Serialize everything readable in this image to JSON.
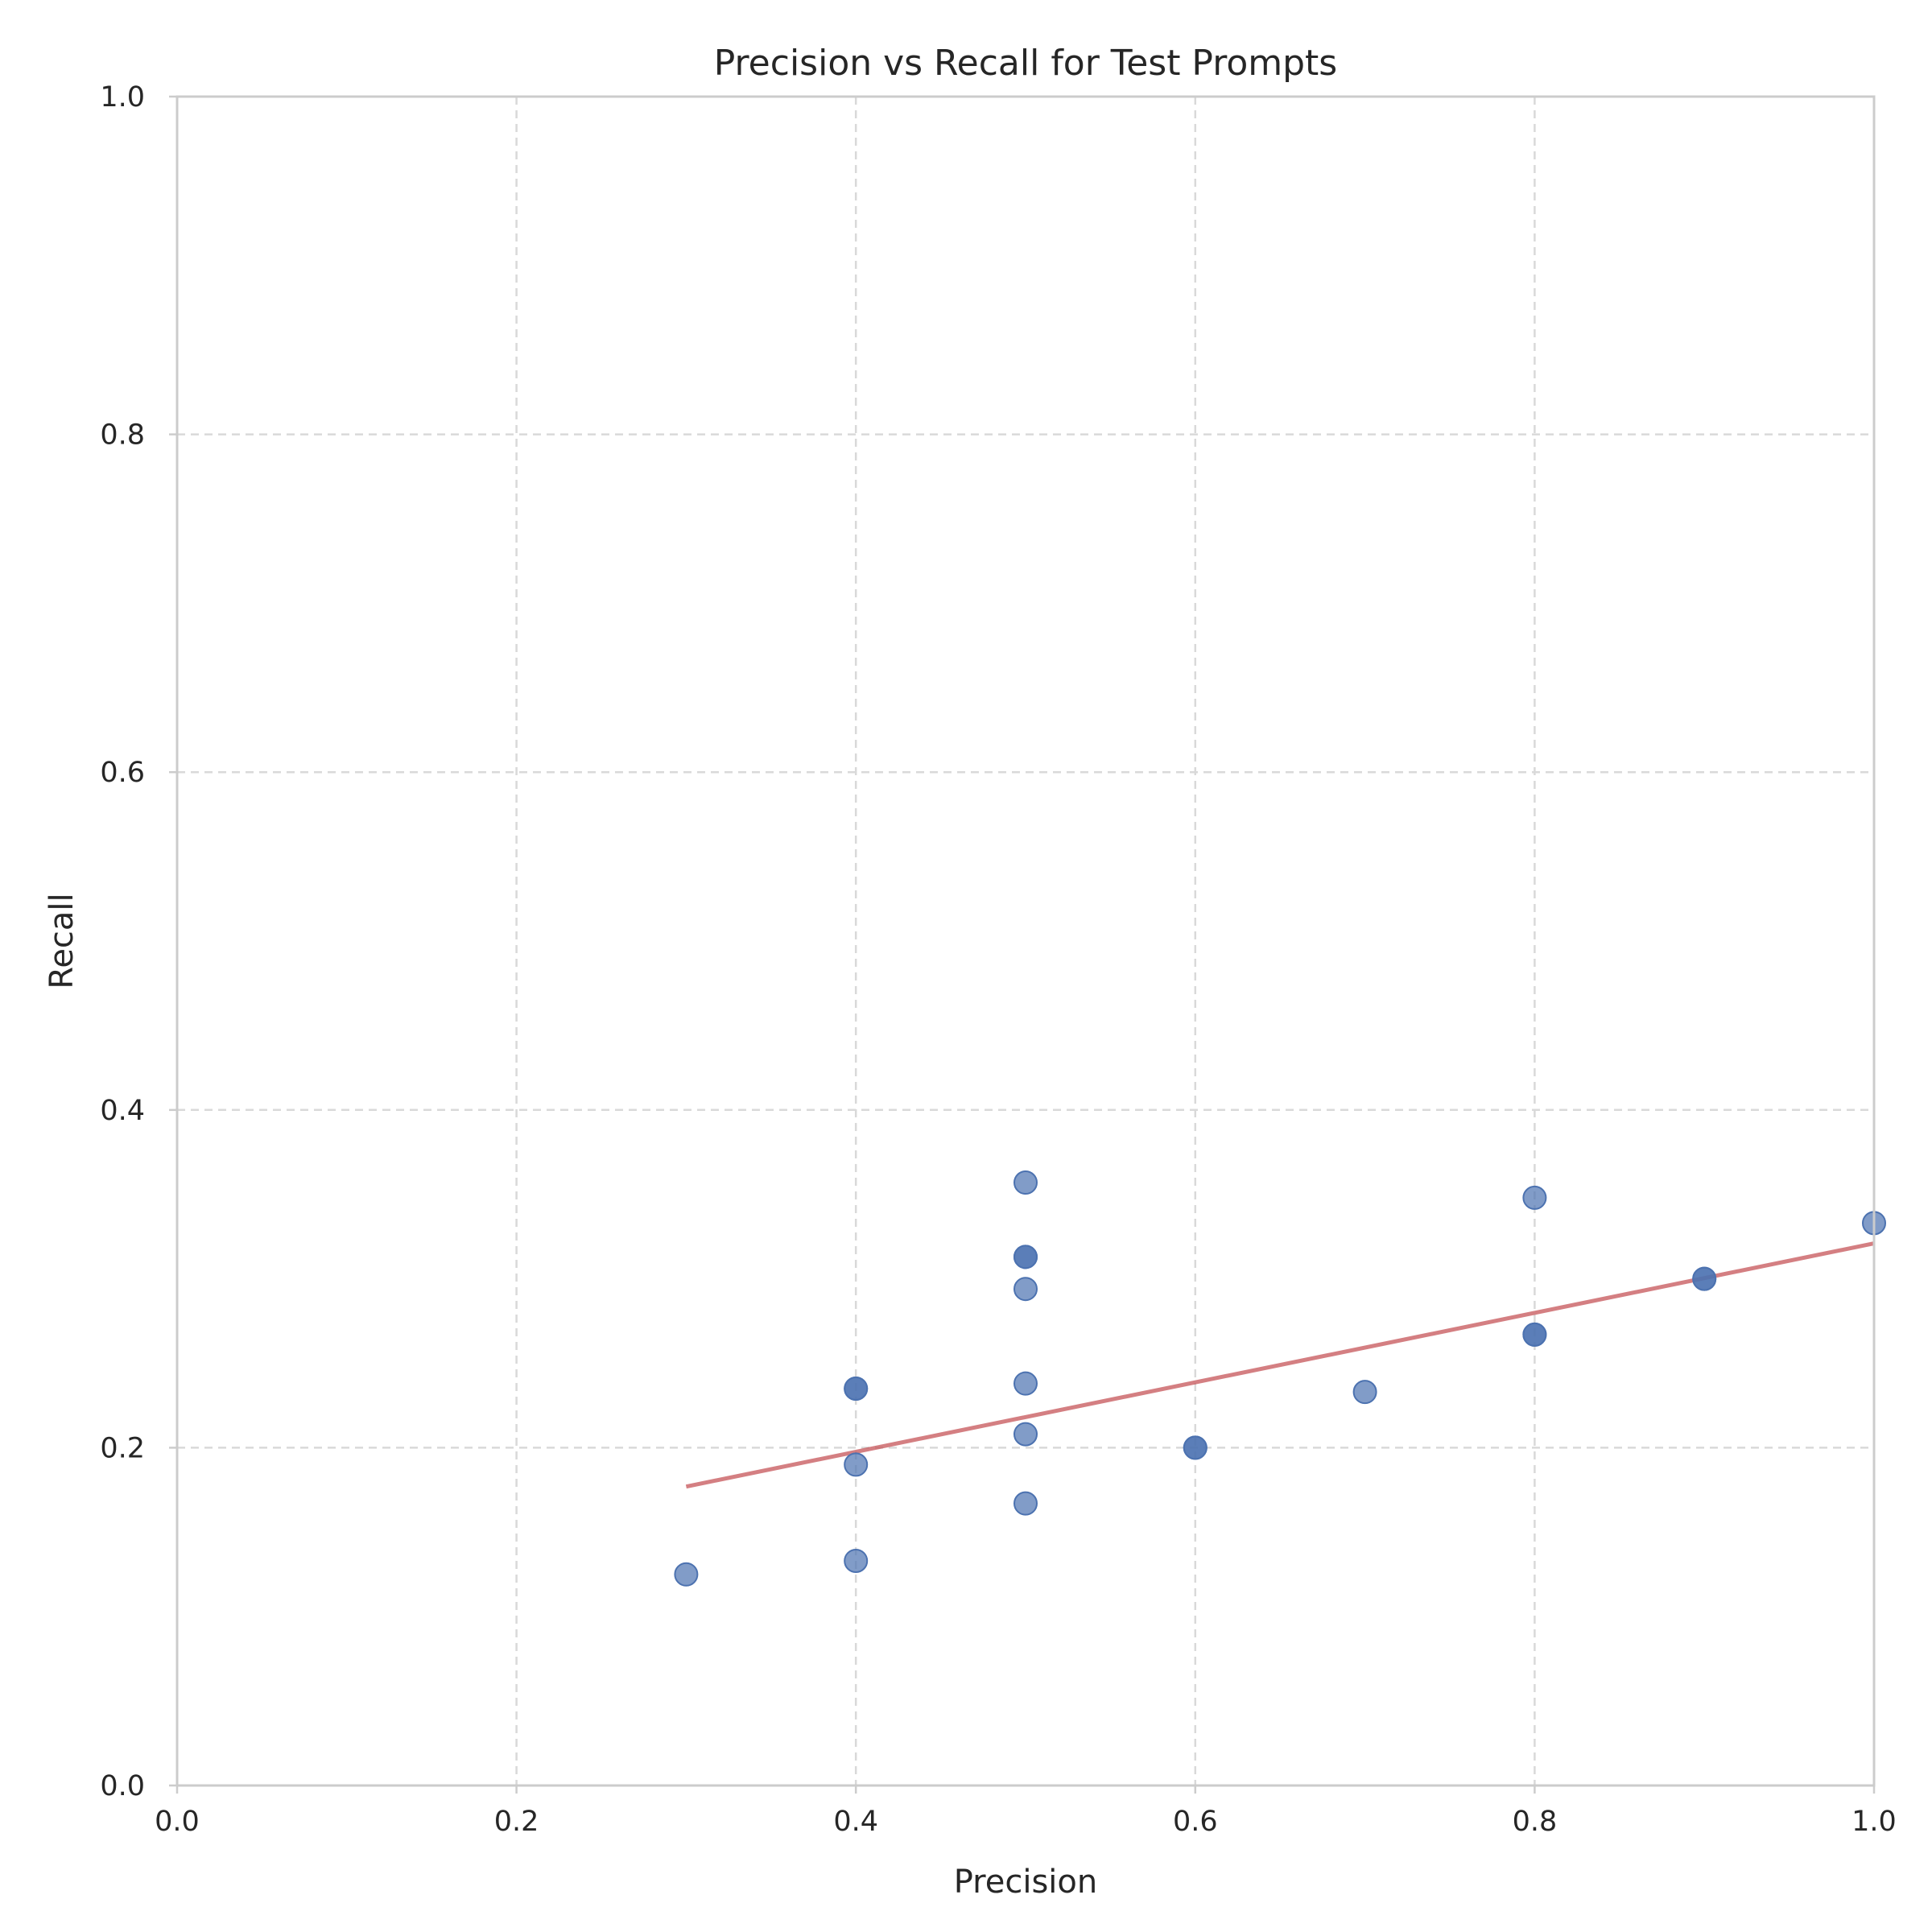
{
  "chart_data": {
    "type": "scatter",
    "title": "Precision vs Recall for Test Prompts",
    "xlabel": "Precision",
    "ylabel": "Recall",
    "xlim": [
      0,
      1
    ],
    "ylim": [
      0,
      1
    ],
    "xticks": [
      "0.0",
      "0.2",
      "0.4",
      "0.6",
      "0.8",
      "1.0"
    ],
    "yticks": [
      "0.0",
      "0.2",
      "0.4",
      "0.6",
      "0.8",
      "1.0"
    ],
    "grid": true,
    "colors": {
      "points": "#4c72b0",
      "trend": "#c44e52"
    },
    "points": [
      {
        "x": 0.3,
        "y": 0.125
      },
      {
        "x": 0.4,
        "y": 0.133
      },
      {
        "x": 0.4,
        "y": 0.19
      },
      {
        "x": 0.4,
        "y": 0.235
      },
      {
        "x": 0.4,
        "y": 0.235
      },
      {
        "x": 0.5,
        "y": 0.167
      },
      {
        "x": 0.5,
        "y": 0.208
      },
      {
        "x": 0.5,
        "y": 0.238
      },
      {
        "x": 0.5,
        "y": 0.294
      },
      {
        "x": 0.5,
        "y": 0.313
      },
      {
        "x": 0.5,
        "y": 0.313
      },
      {
        "x": 0.5,
        "y": 0.357
      },
      {
        "x": 0.6,
        "y": 0.2
      },
      {
        "x": 0.6,
        "y": 0.2
      },
      {
        "x": 0.7,
        "y": 0.233
      },
      {
        "x": 0.8,
        "y": 0.267
      },
      {
        "x": 0.8,
        "y": 0.267
      },
      {
        "x": 0.8,
        "y": 0.348
      },
      {
        "x": 0.9,
        "y": 0.3
      },
      {
        "x": 0.9,
        "y": 0.3
      },
      {
        "x": 1.0,
        "y": 0.333
      }
    ],
    "trendline": {
      "x": [
        0.3,
        1.0
      ],
      "y": [
        0.177,
        0.321
      ]
    }
  }
}
